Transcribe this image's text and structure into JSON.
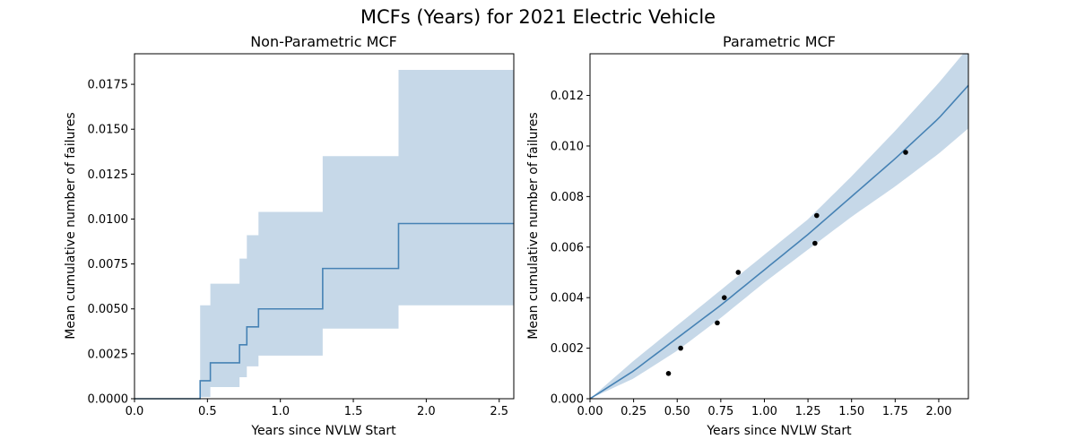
{
  "figure": {
    "title": "MCFs (Years) for 2021 Electric Vehicle"
  },
  "chart_data": [
    {
      "type": "line",
      "drawstyle": "steps-post",
      "title": "Non-Parametric MCF",
      "xlabel": "Years since NVLW Start",
      "ylabel": "Mean cumulative number of failures",
      "xlim": [
        0,
        2.6
      ],
      "ylim": [
        0,
        0.0192
      ],
      "xticks": [
        "0.0",
        "0.5",
        "1.0",
        "1.5",
        "2.0",
        "2.5"
      ],
      "yticks": [
        "0.0000",
        "0.0025",
        "0.0050",
        "0.0075",
        "0.0100",
        "0.0125",
        "0.0150",
        "0.0175"
      ],
      "grid": false,
      "line_color": "#4682b4",
      "band_color": "#c6d8e8",
      "series": [
        {
          "x": [
            0.0,
            0.45,
            0.52,
            0.72,
            0.77,
            0.85,
            1.29,
            1.81,
            2.6
          ],
          "y": [
            0.0,
            0.001,
            0.002,
            0.003,
            0.004,
            0.005,
            0.00725,
            0.00975,
            0.00975
          ],
          "lower": [
            0.0,
            0.0001,
            0.00065,
            0.0012,
            0.0018,
            0.0024,
            0.0039,
            0.0052,
            0.0052
          ],
          "upper": [
            0.0,
            0.0052,
            0.0064,
            0.0078,
            0.0091,
            0.0104,
            0.0135,
            0.0183,
            0.0183
          ]
        }
      ]
    },
    {
      "type": "line",
      "title": "Parametric MCF",
      "xlabel": "Years since NVLW Start",
      "ylabel": "Mean cumulative number of failures",
      "xlim": [
        0,
        2.17
      ],
      "ylim": [
        0,
        0.01365
      ],
      "xticks": [
        "0.00",
        "0.25",
        "0.50",
        "0.75",
        "1.00",
        "1.25",
        "1.50",
        "1.75",
        "2.00"
      ],
      "yticks": [
        "0.000",
        "0.002",
        "0.004",
        "0.006",
        "0.008",
        "0.010",
        "0.012"
      ],
      "grid": false,
      "line_color": "#4682b4",
      "band_color": "#c6d8e8",
      "fit": {
        "x": [
          0.0,
          0.25,
          0.5,
          0.75,
          1.0,
          1.25,
          1.5,
          1.75,
          2.0,
          2.17
        ],
        "y": [
          0.0,
          0.0011,
          0.0024,
          0.0037,
          0.0051,
          0.0065,
          0.008,
          0.0095,
          0.0111,
          0.0124
        ],
        "lower": [
          0.0,
          0.0008,
          0.0019,
          0.0032,
          0.0046,
          0.0059,
          0.0072,
          0.0084,
          0.0097,
          0.0107
        ],
        "upper": [
          0.0,
          0.0015,
          0.0029,
          0.0043,
          0.0057,
          0.0071,
          0.0088,
          0.0106,
          0.0125,
          0.0139
        ]
      },
      "points": {
        "x": [
          0.45,
          0.52,
          0.73,
          0.77,
          0.85,
          1.29,
          1.3,
          1.81
        ],
        "y": [
          0.001,
          0.002,
          0.003,
          0.004,
          0.005,
          0.00615,
          0.00725,
          0.00975
        ]
      }
    }
  ]
}
